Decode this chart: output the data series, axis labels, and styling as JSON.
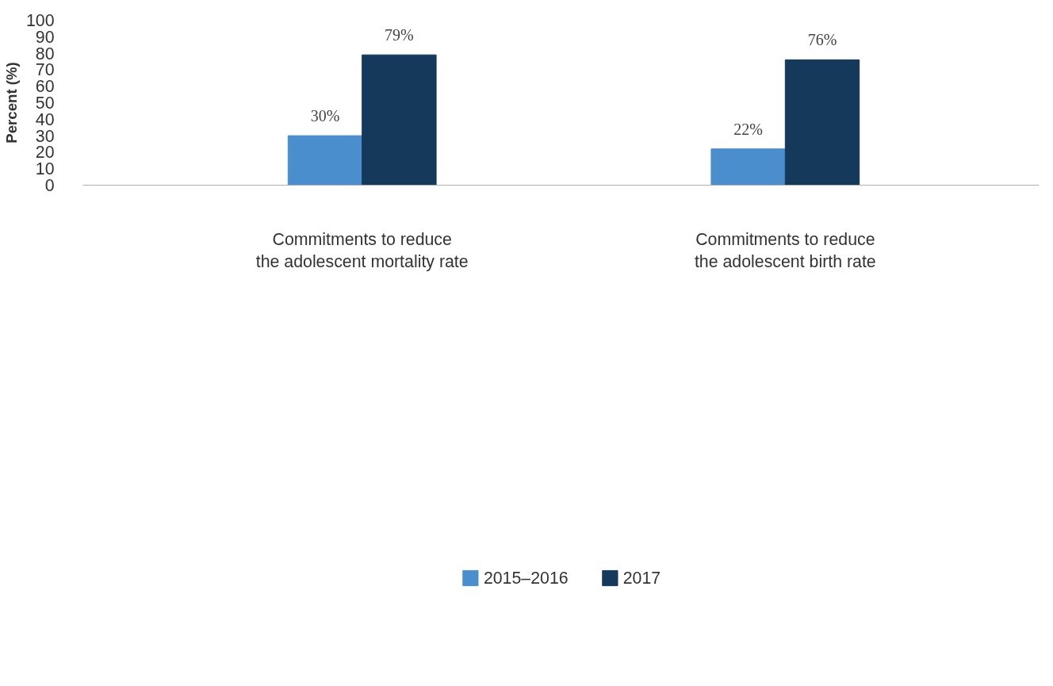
{
  "chart_data": {
    "type": "bar",
    "ylabel": "Percent (%)",
    "categories": [
      "Commitments to reduce\nthe adolescent mortality rate",
      "Commitments to reduce\nthe adolescent birth rate"
    ],
    "series": [
      {
        "name": "2015–2016",
        "color": "#4a8ecd",
        "values": [
          30,
          22
        ],
        "value_labels": [
          "30%",
          "22%"
        ]
      },
      {
        "name": "2017",
        "color": "#14395b",
        "values": [
          79,
          76
        ],
        "value_labels": [
          "79%",
          "76%"
        ]
      }
    ],
    "ylim": [
      0,
      100
    ],
    "yticks": [
      0,
      10,
      20,
      30,
      40,
      50,
      60,
      70,
      80,
      90,
      100
    ],
    "grid": false,
    "legend": "bottom"
  }
}
